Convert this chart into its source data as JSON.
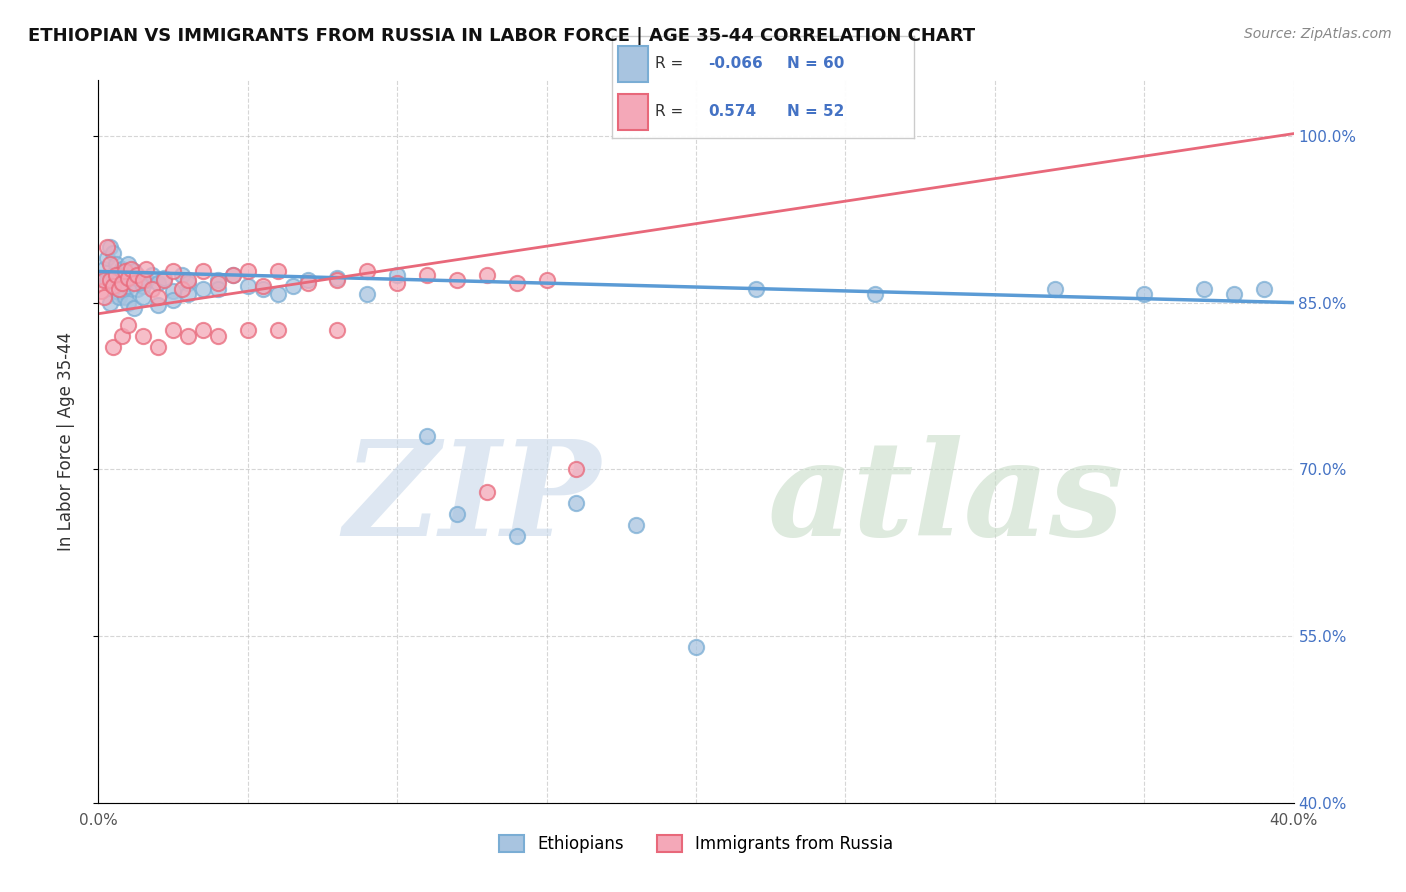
{
  "title": "ETHIOPIAN VS IMMIGRANTS FROM RUSSIA IN LABOR FORCE | AGE 35-44 CORRELATION CHART",
  "source": "Source: ZipAtlas.com",
  "ylabel": "In Labor Force | Age 35-44",
  "xlim": [
    0.0,
    0.4
  ],
  "ylim": [
    0.4,
    1.05
  ],
  "blue_R": "-0.066",
  "blue_N": "60",
  "pink_R": "0.574",
  "pink_N": "52",
  "blue_color": "#a8c4e0",
  "pink_color": "#f4a8b8",
  "blue_edge_color": "#7aadd4",
  "pink_edge_color": "#e8687a",
  "blue_line_color": "#5b9bd5",
  "pink_line_color": "#e8687a",
  "legend_labels": [
    "Ethiopians",
    "Immigrants from Russia"
  ],
  "blue_x": [
    0.002,
    0.003,
    0.003,
    0.004,
    0.004,
    0.005,
    0.005,
    0.006,
    0.006,
    0.007,
    0.007,
    0.008,
    0.008,
    0.009,
    0.009,
    0.01,
    0.01,
    0.011,
    0.012,
    0.013,
    0.014,
    0.015,
    0.016,
    0.018,
    0.02,
    0.022,
    0.025,
    0.028,
    0.03,
    0.035,
    0.04,
    0.045,
    0.05,
    0.055,
    0.06,
    0.065,
    0.07,
    0.08,
    0.09,
    0.1,
    0.11,
    0.12,
    0.14,
    0.16,
    0.18,
    0.2,
    0.22,
    0.26,
    0.32,
    0.35,
    0.37,
    0.38,
    0.39,
    0.01,
    0.012,
    0.015,
    0.02,
    0.025,
    0.03,
    0.04
  ],
  "blue_y": [
    0.88,
    0.89,
    0.87,
    0.9,
    0.85,
    0.875,
    0.895,
    0.86,
    0.885,
    0.87,
    0.855,
    0.88,
    0.86,
    0.875,
    0.855,
    0.885,
    0.865,
    0.872,
    0.878,
    0.862,
    0.87,
    0.865,
    0.87,
    0.875,
    0.868,
    0.872,
    0.86,
    0.875,
    0.868,
    0.862,
    0.87,
    0.875,
    0.865,
    0.862,
    0.858,
    0.865,
    0.87,
    0.872,
    0.858,
    0.875,
    0.73,
    0.66,
    0.64,
    0.67,
    0.65,
    0.54,
    0.862,
    0.858,
    0.862,
    0.858,
    0.862,
    0.858,
    0.862,
    0.85,
    0.845,
    0.855,
    0.848,
    0.852,
    0.858,
    0.862
  ],
  "pink_x": [
    0.001,
    0.002,
    0.002,
    0.003,
    0.004,
    0.004,
    0.005,
    0.006,
    0.007,
    0.008,
    0.009,
    0.01,
    0.011,
    0.012,
    0.013,
    0.015,
    0.016,
    0.018,
    0.02,
    0.022,
    0.025,
    0.028,
    0.03,
    0.035,
    0.04,
    0.045,
    0.05,
    0.055,
    0.06,
    0.07,
    0.08,
    0.09,
    0.1,
    0.11,
    0.12,
    0.13,
    0.14,
    0.15,
    0.16,
    0.005,
    0.008,
    0.01,
    0.015,
    0.02,
    0.025,
    0.03,
    0.035,
    0.04,
    0.05,
    0.06,
    0.08,
    0.13
  ],
  "pink_y": [
    0.86,
    0.87,
    0.855,
    0.9,
    0.87,
    0.885,
    0.865,
    0.875,
    0.862,
    0.868,
    0.878,
    0.872,
    0.88,
    0.868,
    0.875,
    0.87,
    0.88,
    0.862,
    0.855,
    0.87,
    0.878,
    0.862,
    0.87,
    0.878,
    0.868,
    0.875,
    0.878,
    0.865,
    0.878,
    0.868,
    0.87,
    0.878,
    0.868,
    0.875,
    0.87,
    0.875,
    0.868,
    0.87,
    0.7,
    0.81,
    0.82,
    0.83,
    0.82,
    0.81,
    0.825,
    0.82,
    0.825,
    0.82,
    0.825,
    0.825,
    0.825,
    0.68
  ],
  "blue_line_x": [
    0.0,
    0.4
  ],
  "blue_line_y": [
    0.878,
    0.85
  ],
  "pink_line_x": [
    0.0,
    0.4
  ],
  "pink_line_y": [
    0.84,
    1.002
  ]
}
